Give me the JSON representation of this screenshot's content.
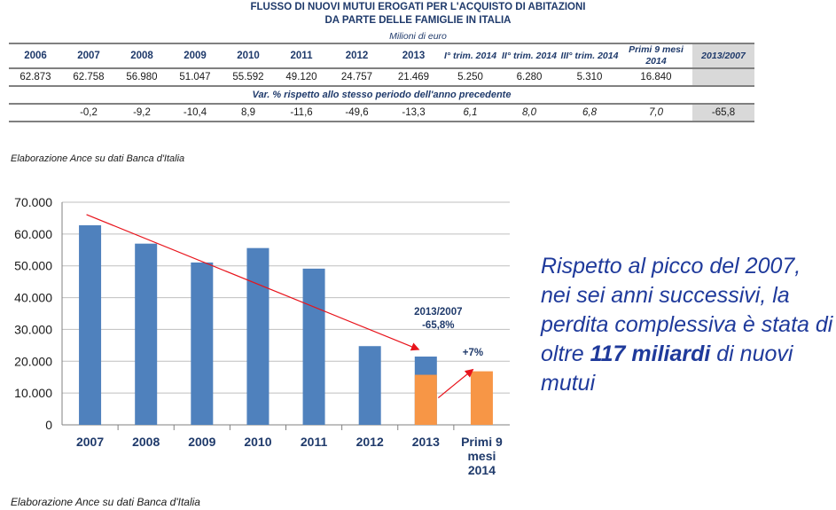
{
  "table": {
    "title_line1": "FLUSSO DI NUOVI MUTUI EROGATI PER L'ACQUISTO DI ABITAZIONI",
    "title_line2": "DA PARTE DELLE FAMIGLIE IN ITALIA",
    "units": "Milioni di euro",
    "headers": [
      "2006",
      "2007",
      "2008",
      "2009",
      "2010",
      "2011",
      "2012",
      "2013",
      "I° trim. 2014",
      "II° trim. 2014",
      "III° trim. 2014",
      "Primi 9 mesi 2014",
      "2013/2007"
    ],
    "values": [
      "62.873",
      "62.758",
      "56.980",
      "51.047",
      "55.592",
      "49.120",
      "24.757",
      "21.469",
      "5.250",
      "6.280",
      "5.310",
      "16.840",
      ""
    ],
    "var_label": "Var. % rispetto allo stesso periodo dell'anno precedente",
    "pct": [
      "",
      "-0,2",
      "-9,2",
      "-10,4",
      "8,9",
      "-11,6",
      "-49,6",
      "-13,3",
      "6,1",
      "8,0",
      "6,8",
      "7,0",
      "-65,8"
    ],
    "source": "Elaborazione Ance su dati Banca d'Italia"
  },
  "chart_data": {
    "type": "bar",
    "categories": [
      "2007",
      "2008",
      "2009",
      "2010",
      "2011",
      "2012",
      "2013",
      "Primi 9 mesi 2014"
    ],
    "category_labels": [
      [
        "2007"
      ],
      [
        "2008"
      ],
      [
        "2009"
      ],
      [
        "2010"
      ],
      [
        "2011"
      ],
      [
        "2012"
      ],
      [
        "2013"
      ],
      [
        "Primi 9",
        "mesi",
        "2014"
      ]
    ],
    "series": [
      {
        "values": [
          62758,
          56980,
          51047,
          55592,
          49120,
          24757,
          21469,
          null
        ],
        "color": "#4f81bd"
      },
      {
        "values": [
          null,
          null,
          null,
          null,
          null,
          null,
          15740,
          16840
        ],
        "color": "#f79646"
      }
    ],
    "ylim": [
      0,
      70000
    ],
    "yticks": [
      "0",
      "10.000",
      "20.000",
      "30.000",
      "40.000",
      "50.000",
      "60.000",
      "70.000"
    ],
    "grid": true,
    "trend_color": "#e8131b",
    "annotations": {
      "ratio_line1": "2013/2007",
      "ratio_line2": "-65,8%",
      "growth": "+7%"
    },
    "source": "Elaborazione Ance su dati Banca d'Italia"
  },
  "text_box": {
    "part1": "Rispetto al picco del 2007, nei sei anni successivi, la perdita complessiva è stata di  oltre ",
    "bold": "117 miliardi",
    "part2": " di nuovi mutui"
  }
}
